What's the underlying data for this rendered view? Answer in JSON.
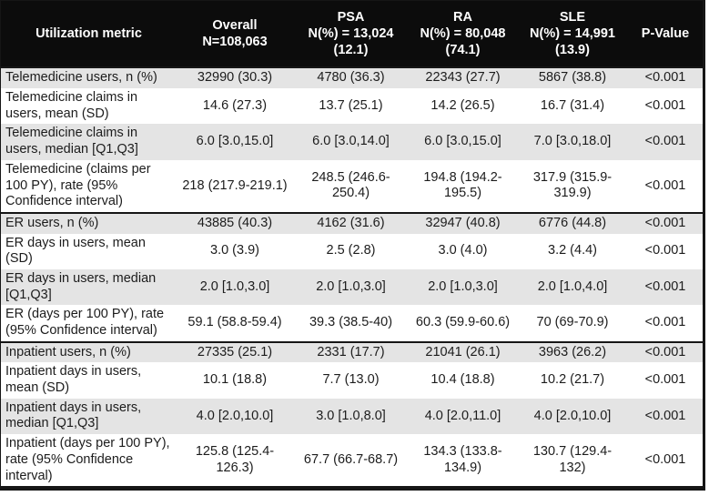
{
  "colors": {
    "header_bg": "#0c0c0c",
    "header_text": "#ffffff",
    "stripe": "#e4e4e4",
    "row_bg": "#ffffff",
    "border": "#161616",
    "text": "#1c1c1c"
  },
  "table": {
    "columns": [
      {
        "id": "metric",
        "lines": [
          "Utilization metric"
        ]
      },
      {
        "id": "overall",
        "lines": [
          "Overall",
          "N=108,063"
        ]
      },
      {
        "id": "psa",
        "lines": [
          "PSA",
          "N(%) = 13,024",
          "(12.1)"
        ]
      },
      {
        "id": "ra",
        "lines": [
          "RA",
          "N(%) = 80,048",
          "(74.1)"
        ]
      },
      {
        "id": "sle",
        "lines": [
          "SLE",
          "N(%) = 14,991",
          "(13.9)"
        ]
      },
      {
        "id": "pvalue",
        "lines": [
          "P-Value"
        ]
      }
    ],
    "rows": [
      {
        "section_start": false,
        "cells": [
          "Telemedicine users, n (%)",
          "32990 (30.3)",
          "4780 (36.3)",
          "22343 (27.7)",
          "5867 (38.8)",
          "<0.001"
        ]
      },
      {
        "section_start": false,
        "cells": [
          "Telemedicine claims in users, mean (SD)",
          "14.6 (27.3)",
          "13.7 (25.1)",
          "14.2 (26.5)",
          "16.7 (31.4)",
          "<0.001"
        ]
      },
      {
        "section_start": false,
        "cells": [
          "Telemedicine claims in users, median [Q1,Q3]",
          "6.0 [3.0,15.0]",
          "6.0 [3.0,14.0]",
          "6.0 [3.0,15.0]",
          "7.0 [3.0,18.0]",
          "<0.001"
        ]
      },
      {
        "section_start": false,
        "cells": [
          "Telemedicine (claims per 100 PY), rate (95% Confidence interval)",
          "218 (217.9-219.1)",
          "248.5 (246.6-250.4)",
          "194.8 (194.2-195.5)",
          "317.9 (315.9-319.9)",
          "<0.001"
        ]
      },
      {
        "section_start": true,
        "cells": [
          "ER users, n (%)",
          "43885 (40.3)",
          "4162 (31.6)",
          "32947 (40.8)",
          "6776 (44.8)",
          "<0.001"
        ]
      },
      {
        "section_start": false,
        "cells": [
          "ER days in users, mean (SD)",
          "3.0 (3.9)",
          "2.5 (2.8)",
          "3.0 (4.0)",
          "3.2 (4.4)",
          "<0.001"
        ]
      },
      {
        "section_start": false,
        "cells": [
          "ER days in users, median [Q1,Q3]",
          "2.0 [1.0,3.0]",
          "2.0 [1.0,3.0]",
          "2.0 [1.0,3.0]",
          "2.0 [1.0,4.0]",
          "<0.001"
        ]
      },
      {
        "section_start": false,
        "cells": [
          "ER (days per 100 PY), rate (95% Confidence interval)",
          "59.1 (58.8-59.4)",
          "39.3 (38.5-40)",
          "60.3 (59.9-60.6)",
          "70 (69-70.9)",
          "<0.001"
        ]
      },
      {
        "section_start": true,
        "cells": [
          "Inpatient users, n (%)",
          "27335 (25.1)",
          "2331 (17.7)",
          "21041 (26.1)",
          "3963 (26.2)",
          "<0.001"
        ]
      },
      {
        "section_start": false,
        "cells": [
          "Inpatient days in users, mean (SD)",
          "10.1 (18.8)",
          "7.7 (13.0)",
          "10.4 (18.8)",
          "10.2 (21.7)",
          "<0.001"
        ]
      },
      {
        "section_start": false,
        "cells": [
          "Inpatient days in users, median [Q1,Q3]",
          "4.0 [2.0,10.0]",
          "3.0 [1.0,8.0]",
          "4.0 [2.0,11.0]",
          "4.0 [2.0,10.0]",
          "<0.001"
        ]
      },
      {
        "section_start": false,
        "cells": [
          "Inpatient (days per 100 PY), rate (95% Confidence interval)",
          "125.8 (125.4-126.3)",
          "67.7 (66.7-68.7)",
          "134.3 (133.8-134.9)",
          "130.7 (129.4-132)",
          "<0.001"
        ]
      }
    ]
  }
}
